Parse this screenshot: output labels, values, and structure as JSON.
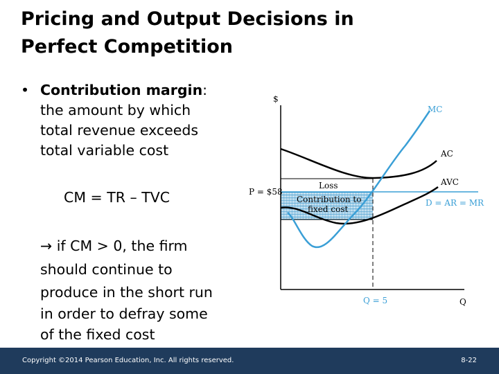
{
  "slide": {
    "title_line1": "Pricing and Output Decisions in",
    "title_line2": "Perfect Competition",
    "bullet_dot": "•",
    "bullet_term": "Contribution margin",
    "bullet_colon": ":",
    "bullet_line2": "the amount by which",
    "bullet_line3": "total revenue exceeds",
    "bullet_line4": "total variable cost",
    "formula": "CM = TR – TVC",
    "note_line1": " if CM > 0, the firm",
    "note_line2": "should continue to",
    "note_line3": "produce in the short run",
    "note_line4": "in order to defray some",
    "note_line5": "of the fixed cost"
  },
  "diagram": {
    "y_axis": "$",
    "x_axis": "Q",
    "price_label": "P = $58",
    "quantity_label": "Q = 5",
    "mc_label": "MC",
    "ac_label": "AC",
    "avc_label": "AVC",
    "demand_label": "D = AR = MR",
    "loss_label": "Loss",
    "contribution_line1": "Contribution to",
    "contribution_line2": "fixed cost",
    "colors": {
      "mc": "#3a9fd6",
      "demand": "#3a9fd6",
      "cost_curves": "#000000",
      "hatch": "#4a9fd0"
    }
  },
  "footer": {
    "copyright": "Copyright ©2014 Pearson Education, Inc. All rights reserved.",
    "page": "8-22",
    "color": "#1f3b5c"
  }
}
